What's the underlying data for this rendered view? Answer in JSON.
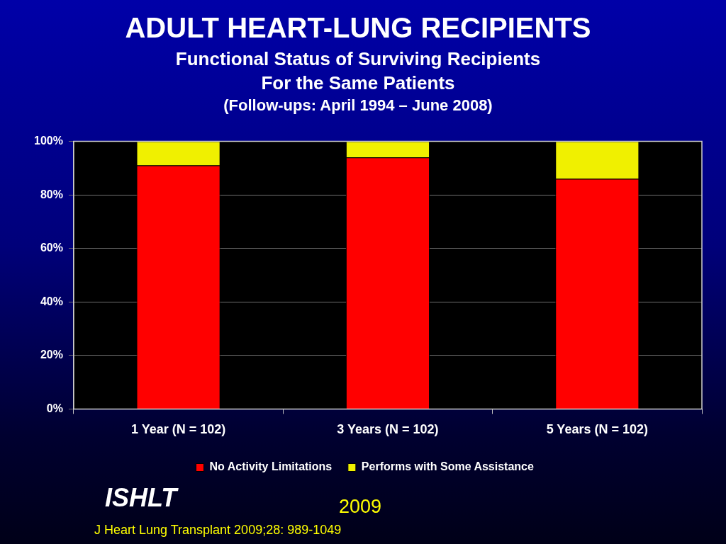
{
  "chart_data": {
    "type": "bar",
    "title": "ADULT HEART-LUNG RECIPIENTS",
    "subtitle": "Functional Status of Surviving Recipients\nFor the Same Patients",
    "annotations": [
      "(Follow-ups: April 1994 – June 2008)",
      "ISHLT",
      "2009",
      "J Heart Lung Transplant 2009;28: 989-1049"
    ],
    "categories": [
      "1 Year (N = 102)",
      "3 Years (N = 102)",
      "5 Years (N = 102)"
    ],
    "series": [
      {
        "name": "No Activity Limitations",
        "color": "#ff0000",
        "values": [
          91,
          94,
          86
        ]
      },
      {
        "name": "Performs with Some Assistance",
        "color": "#f0f000",
        "values": [
          9,
          6,
          14
        ]
      }
    ],
    "stacked": true,
    "ylim": [
      0,
      100
    ],
    "yticks": [
      {
        "value": 0,
        "label": "0%"
      },
      {
        "value": 20,
        "label": "20%"
      },
      {
        "value": 40,
        "label": "40%"
      },
      {
        "value": 60,
        "label": "60%"
      },
      {
        "value": 80,
        "label": "80%"
      },
      {
        "value": 100,
        "label": "100%"
      }
    ],
    "grid": "y",
    "legend": "bottom"
  }
}
